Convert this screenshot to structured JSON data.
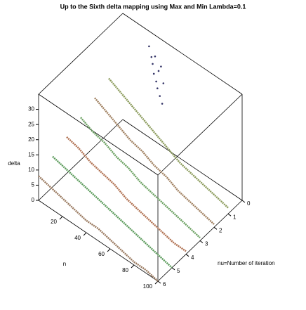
{
  "chart_data": {
    "type": "line3d",
    "title": "Up to the Sixth delta mapping using Max and Min   Lambda=0.1",
    "xlabel": "n",
    "ylabel": "nu=Number of iteration",
    "zlabel": "delta",
    "xlim": [
      0,
      100
    ],
    "xticks": [
      20,
      40,
      60,
      80,
      100
    ],
    "ylim": [
      0,
      6
    ],
    "yticks": [
      0,
      1,
      2,
      3,
      4,
      5,
      6
    ],
    "zlim": [
      0,
      35
    ],
    "zticks": [
      0,
      5,
      10,
      15,
      20,
      25,
      30
    ],
    "series": [
      {
        "nu": 0,
        "color": "#333366",
        "marker": "dot",
        "x": [
          22,
          24,
          25,
          26,
          27,
          28,
          29,
          30,
          31,
          32,
          33,
          34
        ],
        "values": [
          30,
          27,
          25,
          22,
          28,
          20,
          18,
          24,
          16,
          26,
          14,
          21
        ]
      },
      {
        "nu": 1,
        "color": "#8a9a5a",
        "x": [
          0,
          10,
          20,
          30,
          40,
          50,
          60,
          70,
          80,
          90,
          100
        ],
        "values": [
          18,
          16,
          14,
          12,
          10,
          8,
          6,
          5,
          4,
          3,
          2
        ]
      },
      {
        "nu": 2,
        "color": "#a08060",
        "x": [
          0,
          10,
          20,
          30,
          40,
          50,
          60,
          70,
          80,
          90,
          100
        ],
        "values": [
          16,
          14,
          12,
          10,
          9,
          7,
          6,
          4,
          3,
          2,
          1
        ]
      },
      {
        "nu": 3,
        "color": "#6aa060",
        "x": [
          0,
          10,
          20,
          30,
          40,
          50,
          60,
          70,
          80,
          90,
          100
        ],
        "values": [
          14,
          12,
          11,
          9,
          8,
          6,
          5,
          4,
          3,
          2,
          1
        ]
      },
      {
        "nu": 4,
        "color": "#b07050",
        "x": [
          0,
          10,
          20,
          30,
          40,
          50,
          60,
          70,
          80,
          90,
          100
        ],
        "values": [
          12,
          11,
          9,
          8,
          7,
          5,
          4,
          3,
          2,
          1,
          1
        ]
      },
      {
        "nu": 5,
        "color": "#5a9a5a",
        "x": [
          0,
          10,
          20,
          30,
          40,
          50,
          60,
          70,
          80,
          90,
          100
        ],
        "values": [
          10,
          9,
          8,
          7,
          6,
          5,
          4,
          3,
          2,
          1,
          0
        ]
      },
      {
        "nu": 6,
        "color": "#9a7a60",
        "x": [
          0,
          10,
          20,
          30,
          40,
          50,
          60,
          70,
          80,
          90,
          100
        ],
        "values": [
          8,
          7,
          6,
          5,
          4,
          4,
          3,
          2,
          1,
          1,
          0
        ]
      }
    ]
  }
}
